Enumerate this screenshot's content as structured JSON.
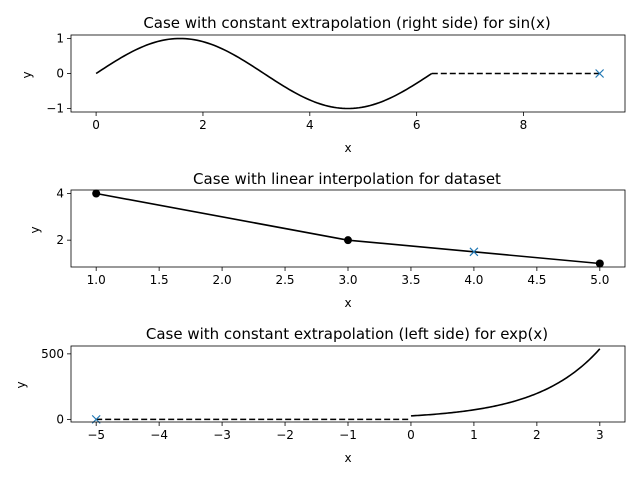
{
  "chart_data": [
    {
      "type": "line",
      "title": "Case with constant extrapolation (right side) for sin(x)",
      "xlabel": "x",
      "ylabel": "y",
      "xlim": [
        -0.47,
        9.9
      ],
      "ylim": [
        -1.1,
        1.1
      ],
      "xticks": [
        0,
        2,
        4,
        6,
        8
      ],
      "xtick_labels": [
        "0",
        "2",
        "4",
        "6",
        "8"
      ],
      "yticks": [
        -1,
        0,
        1
      ],
      "ytick_labels": [
        "−1",
        "0",
        "1"
      ],
      "series": [
        {
          "style": "solid",
          "color": "#000000",
          "function": "sin",
          "x_range": [
            0,
            6.2832
          ]
        },
        {
          "style": "dashed",
          "color": "#000000",
          "points": [
            [
              6.2832,
              0
            ],
            [
              9.4248,
              0
            ]
          ]
        },
        {
          "style": "marker-x",
          "color": "#1f77b4",
          "points": [
            [
              9.4248,
              0
            ]
          ]
        }
      ]
    },
    {
      "type": "line",
      "title": "Case with linear interpolation for dataset",
      "xlabel": "x",
      "ylabel": "y",
      "xlim": [
        0.8,
        5.2
      ],
      "ylim": [
        0.85,
        4.15
      ],
      "xticks": [
        1.0,
        1.5,
        2.0,
        2.5,
        3.0,
        3.5,
        4.0,
        4.5,
        5.0
      ],
      "xtick_labels": [
        "1.0",
        "1.5",
        "2.0",
        "2.5",
        "3.0",
        "3.5",
        "4.0",
        "4.5",
        "5.0"
      ],
      "yticks": [
        2,
        4
      ],
      "ytick_labels": [
        "2",
        "4"
      ],
      "series": [
        {
          "style": "solid-with-dots",
          "color": "#000000",
          "points": [
            [
              1,
              4
            ],
            [
              3,
              2
            ],
            [
              5,
              1
            ]
          ]
        },
        {
          "style": "marker-x",
          "color": "#1f77b4",
          "points": [
            [
              4,
              1.5
            ]
          ]
        }
      ]
    },
    {
      "type": "line",
      "title": "Case with constant extrapolation (left side) for exp(x)",
      "xlabel": "x",
      "ylabel": "y",
      "xlim": [
        -5.4,
        3.4
      ],
      "ylim": [
        -20,
        560
      ],
      "xticks": [
        -5,
        -4,
        -3,
        -2,
        -1,
        0,
        1,
        2,
        3
      ],
      "xtick_labels": [
        "−5",
        "−4",
        "−3",
        "−2",
        "−1",
        "0",
        "1",
        "2",
        "3"
      ],
      "yticks": [
        0,
        500
      ],
      "ytick_labels": [
        "0",
        "500"
      ],
      "series": [
        {
          "style": "solid",
          "color": "#000000",
          "function": "exp_scaled",
          "scale": 26.8,
          "x_range": [
            0,
            3
          ]
        },
        {
          "style": "dashed",
          "color": "#000000",
          "points": [
            [
              -5,
              0
            ],
            [
              0,
              0
            ]
          ]
        },
        {
          "style": "marker-x",
          "color": "#1f77b4",
          "points": [
            [
              -5,
              0
            ]
          ]
        }
      ]
    }
  ]
}
